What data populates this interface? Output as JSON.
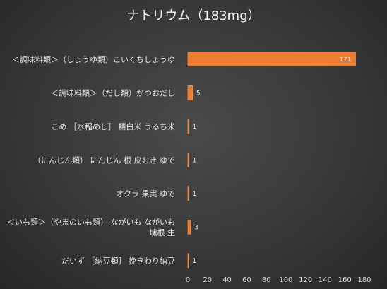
{
  "chart_data": {
    "type": "bar",
    "orientation": "horizontal",
    "title": "ナトリウム（183mg）",
    "categories": [
      [
        "＜調味料類＞（しょうゆ類）こいくちしょうゆ"
      ],
      [
        "＜調味料類＞（だし類）かつおだし"
      ],
      [
        "こめ ［水稲めし］ 精白米 うるち米"
      ],
      [
        "（にんじん類） にんじん 根 皮むき ゆで"
      ],
      [
        "オクラ 果実 ゆで"
      ],
      [
        "＜いも類＞（やまのいも類） ながいも ながいも",
        "塊根 生"
      ],
      [
        "だいず ［納豆類］ 挽きわり納豆"
      ]
    ],
    "values": [
      171,
      5,
      1,
      1,
      1,
      3,
      1
    ],
    "xlim": [
      0,
      180
    ],
    "xticks": [
      0,
      20,
      40,
      60,
      80,
      100,
      120,
      140,
      160,
      180
    ],
    "grid": false,
    "legend": "none",
    "colors": {
      "bar": "#ed7d31",
      "bar_edge": "#f4a46c",
      "background": "#3a3a3a",
      "text": "#e8e8e8"
    }
  }
}
